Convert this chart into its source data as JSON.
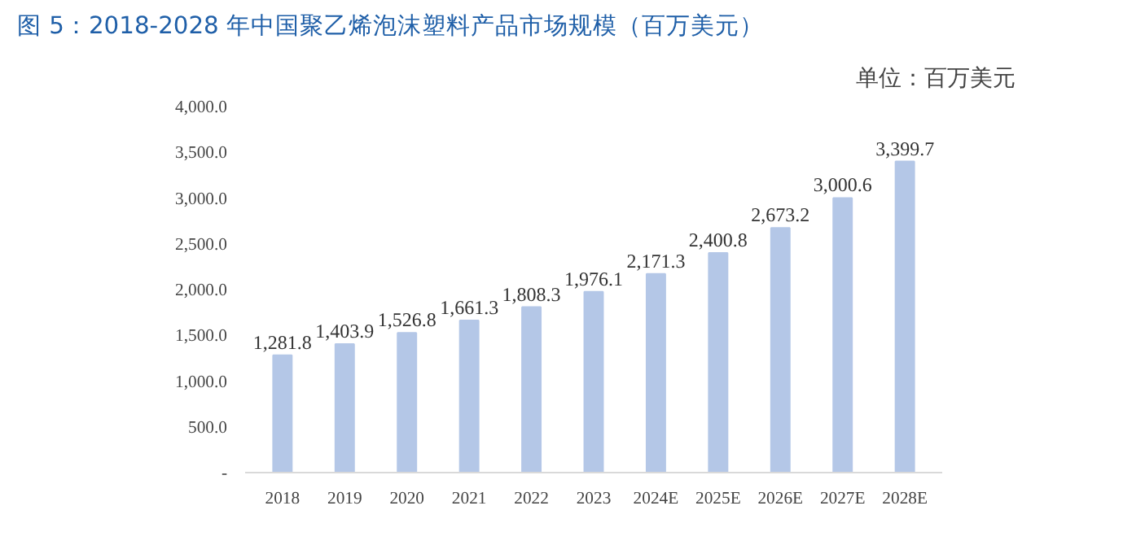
{
  "chart_data": {
    "type": "bar",
    "title": "图 5：2018-2028 年中国聚乙烯泡沫塑料产品市场规模（百万美元）",
    "subtitle": "单位：百万美元",
    "categories": [
      "2018",
      "2019",
      "2020",
      "2021",
      "2022",
      "2023",
      "2024E",
      "2025E",
      "2026E",
      "2027E",
      "2028E"
    ],
    "values": [
      1281.8,
      1403.9,
      1526.8,
      1661.3,
      1808.3,
      1976.1,
      2171.3,
      2400.8,
      2673.2,
      3000.6,
      3399.7
    ],
    "value_labels": [
      "1,281.8",
      "1,403.9",
      "1,526.8",
      "1,661.3",
      "1,808.3",
      "1,976.1",
      "2,171.3",
      "2,400.8",
      "2,673.2",
      "3,000.6",
      "3,399.7"
    ],
    "color": "#b4c7e7",
    "ylim": [
      0,
      4000
    ],
    "yticks": [
      {
        "value": 0,
        "label": "-"
      },
      {
        "value": 500,
        "label": "500.0"
      },
      {
        "value": 1000,
        "label": "1,000.0"
      },
      {
        "value": 1500,
        "label": "1,500.0"
      },
      {
        "value": 2000,
        "label": "2,000.0"
      },
      {
        "value": 2500,
        "label": "2,500.0"
      },
      {
        "value": 3000,
        "label": "3,000.0"
      },
      {
        "value": 3500,
        "label": "3,500.0"
      },
      {
        "value": 4000,
        "label": "4,000.0"
      }
    ],
    "grid": false
  }
}
